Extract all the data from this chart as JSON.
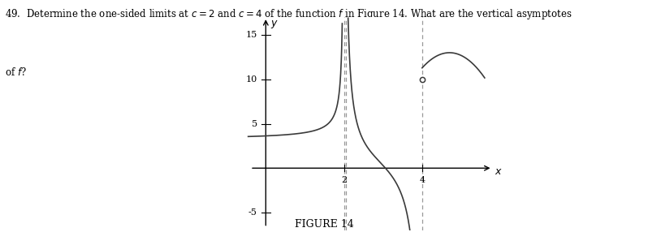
{
  "figure_label": "FIGURE 14",
  "xlim": [
    -0.5,
    5.8
  ],
  "ylim": [
    -7,
    17
  ],
  "xticks": [
    2,
    4
  ],
  "yticks": [
    -5,
    5,
    10,
    15
  ],
  "asymptotes": [
    2,
    4
  ],
  "open_circle": [
    4,
    10
  ],
  "curve_color": "#3a3a3a",
  "asymptote_color": "#999999",
  "text_line1": "49.  Determine the one-sided limits at $c = 2$ and $c = 4$ of the function $f$ in Figure 14. What are the vertical asymptotes",
  "text_line2": "of $f$?"
}
